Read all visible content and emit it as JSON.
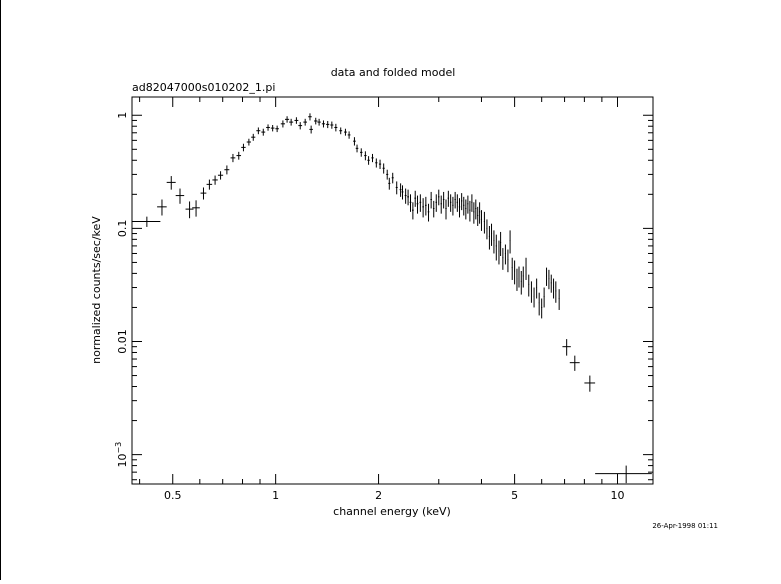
{
  "chart_data": {
    "type": "scatter",
    "title": "data and folded model",
    "subtitle": "ad82047000s010202_1.pi",
    "xlabel": "channel energy (keV)",
    "ylabel": "normalized counts/sec/keV",
    "xscale": "log",
    "yscale": "log",
    "xlim": [
      0.38,
      12.7
    ],
    "ylim": [
      0.00055,
      1.45
    ],
    "grid": false,
    "error_bars": true,
    "xticks": [
      {
        "value": 0.5,
        "label": "0.5"
      },
      {
        "value": 1,
        "label": "1"
      },
      {
        "value": 2,
        "label": "2"
      },
      {
        "value": 5,
        "label": "5"
      },
      {
        "value": 10,
        "label": "10"
      }
    ],
    "yticks": [
      {
        "value": 1,
        "label": "1"
      },
      {
        "value": 0.1,
        "label": "0.1"
      },
      {
        "value": 0.01,
        "label": "0.01"
      },
      {
        "value": 0.001,
        "label": "10",
        "sup": "−3"
      }
    ],
    "points": [
      [
        0.42,
        0.115,
        0.04,
        0.012
      ],
      [
        0.465,
        0.155,
        0.015,
        0.025
      ],
      [
        0.495,
        0.255,
        0.015,
        0.035
      ],
      [
        0.525,
        0.195,
        0.015,
        0.03
      ],
      [
        0.56,
        0.148,
        0.015,
        0.025
      ],
      [
        0.585,
        0.152,
        0.015,
        0.025
      ],
      [
        0.615,
        0.205,
        0.012,
        0.025
      ],
      [
        0.64,
        0.245,
        0.012,
        0.025
      ],
      [
        0.665,
        0.268,
        0.012,
        0.025
      ],
      [
        0.69,
        0.295,
        0.012,
        0.025
      ],
      [
        0.72,
        0.33,
        0.012,
        0.03
      ],
      [
        0.75,
        0.42,
        0.012,
        0.035
      ],
      [
        0.78,
        0.44,
        0.012,
        0.035
      ],
      [
        0.805,
        0.52,
        0.012,
        0.04
      ],
      [
        0.835,
        0.58,
        0.012,
        0.04
      ],
      [
        0.86,
        0.64,
        0.012,
        0.045
      ],
      [
        0.89,
        0.73,
        0.012,
        0.05
      ],
      [
        0.92,
        0.71,
        0.012,
        0.05
      ],
      [
        0.95,
        0.78,
        0.012,
        0.05
      ],
      [
        0.98,
        0.77,
        0.012,
        0.05
      ],
      [
        1.01,
        0.76,
        0.012,
        0.05
      ],
      [
        1.05,
        0.84,
        0.015,
        0.06
      ],
      [
        1.08,
        0.92,
        0.015,
        0.06
      ],
      [
        1.11,
        0.87,
        0.015,
        0.06
      ],
      [
        1.15,
        0.9,
        0.015,
        0.06
      ],
      [
        1.18,
        0.81,
        0.015,
        0.06
      ],
      [
        1.22,
        0.87,
        0.015,
        0.06
      ],
      [
        1.26,
        0.97,
        0.015,
        0.07
      ],
      [
        1.27,
        0.75,
        0.015,
        0.06
      ],
      [
        1.31,
        0.89,
        0.015,
        0.06
      ],
      [
        1.34,
        0.87,
        0.015,
        0.06
      ],
      [
        1.38,
        0.84,
        0.015,
        0.06
      ],
      [
        1.42,
        0.83,
        0.015,
        0.06
      ],
      [
        1.46,
        0.82,
        0.015,
        0.06
      ],
      [
        1.5,
        0.78,
        0.015,
        0.06
      ],
      [
        1.55,
        0.73,
        0.015,
        0.05
      ],
      [
        1.6,
        0.71,
        0.015,
        0.05
      ],
      [
        1.64,
        0.67,
        0.015,
        0.05
      ],
      [
        1.7,
        0.59,
        0.015,
        0.05
      ],
      [
        1.73,
        0.51,
        0.015,
        0.04
      ],
      [
        1.78,
        0.47,
        0.015,
        0.04
      ],
      [
        1.83,
        0.44,
        0.015,
        0.04
      ],
      [
        1.87,
        0.4,
        0.015,
        0.035
      ],
      [
        1.92,
        0.42,
        0.015,
        0.035
      ],
      [
        1.97,
        0.38,
        0.015,
        0.035
      ],
      [
        2.02,
        0.37,
        0.015,
        0.035
      ],
      [
        2.07,
        0.34,
        0.015,
        0.035
      ],
      [
        2.12,
        0.3,
        0.015,
        0.03
      ],
      [
        2.15,
        0.25,
        0.015,
        0.03
      ],
      [
        2.2,
        0.28,
        0.015,
        0.03
      ],
      [
        2.26,
        0.23,
        0.015,
        0.03
      ],
      [
        2.32,
        0.22,
        0.015,
        0.03
      ],
      [
        2.35,
        0.21,
        0.015,
        0.03
      ],
      [
        2.4,
        0.195,
        0.015,
        0.03
      ],
      [
        2.44,
        0.19,
        0.015,
        0.03
      ],
      [
        2.48,
        0.17,
        0.015,
        0.03
      ],
      [
        2.52,
        0.145,
        0.015,
        0.025
      ],
      [
        2.56,
        0.185,
        0.015,
        0.03
      ],
      [
        2.6,
        0.165,
        0.015,
        0.03
      ],
      [
        2.65,
        0.17,
        0.015,
        0.03
      ],
      [
        2.7,
        0.155,
        0.015,
        0.03
      ],
      [
        2.75,
        0.16,
        0.015,
        0.03
      ],
      [
        2.8,
        0.14,
        0.015,
        0.025
      ],
      [
        2.85,
        0.18,
        0.015,
        0.03
      ],
      [
        2.9,
        0.15,
        0.015,
        0.025
      ],
      [
        2.95,
        0.17,
        0.015,
        0.03
      ],
      [
        3.0,
        0.19,
        0.015,
        0.03
      ],
      [
        3.05,
        0.165,
        0.015,
        0.03
      ],
      [
        3.1,
        0.18,
        0.015,
        0.03
      ],
      [
        3.15,
        0.15,
        0.015,
        0.03
      ],
      [
        3.2,
        0.185,
        0.015,
        0.03
      ],
      [
        3.25,
        0.17,
        0.015,
        0.03
      ],
      [
        3.3,
        0.16,
        0.015,
        0.03
      ],
      [
        3.35,
        0.18,
        0.015,
        0.03
      ],
      [
        3.4,
        0.17,
        0.015,
        0.03
      ],
      [
        3.45,
        0.155,
        0.015,
        0.03
      ],
      [
        3.5,
        0.175,
        0.015,
        0.03
      ],
      [
        3.55,
        0.16,
        0.015,
        0.03
      ],
      [
        3.6,
        0.15,
        0.015,
        0.03
      ],
      [
        3.65,
        0.165,
        0.015,
        0.03
      ],
      [
        3.7,
        0.145,
        0.015,
        0.03
      ],
      [
        3.75,
        0.17,
        0.015,
        0.03
      ],
      [
        3.8,
        0.14,
        0.015,
        0.03
      ],
      [
        3.85,
        0.15,
        0.015,
        0.03
      ],
      [
        3.9,
        0.13,
        0.015,
        0.025
      ],
      [
        3.95,
        0.14,
        0.015,
        0.03
      ],
      [
        4.0,
        0.12,
        0.015,
        0.025
      ],
      [
        4.08,
        0.115,
        0.015,
        0.025
      ],
      [
        4.15,
        0.1,
        0.015,
        0.02
      ],
      [
        4.22,
        0.085,
        0.015,
        0.02
      ],
      [
        4.28,
        0.09,
        0.015,
        0.02
      ],
      [
        4.35,
        0.078,
        0.015,
        0.018
      ],
      [
        4.42,
        0.07,
        0.015,
        0.018
      ],
      [
        4.5,
        0.063,
        0.015,
        0.015
      ],
      [
        4.55,
        0.075,
        0.015,
        0.018
      ],
      [
        4.62,
        0.055,
        0.015,
        0.012
      ],
      [
        4.7,
        0.06,
        0.015,
        0.012
      ],
      [
        4.78,
        0.053,
        0.015,
        0.012
      ],
      [
        4.85,
        0.078,
        0.015,
        0.018
      ],
      [
        4.92,
        0.045,
        0.015,
        0.01
      ],
      [
        5.0,
        0.042,
        0.015,
        0.01
      ],
      [
        5.08,
        0.036,
        0.015,
        0.008
      ],
      [
        5.15,
        0.038,
        0.015,
        0.008
      ],
      [
        5.23,
        0.034,
        0.015,
        0.008
      ],
      [
        5.3,
        0.038,
        0.015,
        0.008
      ],
      [
        5.4,
        0.045,
        0.015,
        0.01
      ],
      [
        5.5,
        0.032,
        0.015,
        0.007
      ],
      [
        5.6,
        0.028,
        0.015,
        0.006
      ],
      [
        5.7,
        0.025,
        0.015,
        0.005
      ],
      [
        5.8,
        0.03,
        0.015,
        0.006
      ],
      [
        5.9,
        0.022,
        0.015,
        0.005
      ],
      [
        6.0,
        0.02,
        0.02,
        0.004
      ],
      [
        6.1,
        0.025,
        0.02,
        0.005
      ],
      [
        6.2,
        0.038,
        0.02,
        0.007
      ],
      [
        6.3,
        0.036,
        0.02,
        0.007
      ],
      [
        6.4,
        0.033,
        0.02,
        0.006
      ],
      [
        6.5,
        0.03,
        0.02,
        0.006
      ],
      [
        6.6,
        0.028,
        0.02,
        0.006
      ],
      [
        6.75,
        0.024,
        0.02,
        0.005
      ],
      [
        7.1,
        0.009,
        0.2,
        0.0015
      ],
      [
        7.5,
        0.0065,
        0.25,
        0.001
      ],
      [
        8.3,
        0.0043,
        0.3,
        0.0007
      ],
      [
        10.6,
        0.00068,
        2.0,
        0.00012
      ]
    ]
  },
  "timestamp": "26-Apr-1998 01:11"
}
